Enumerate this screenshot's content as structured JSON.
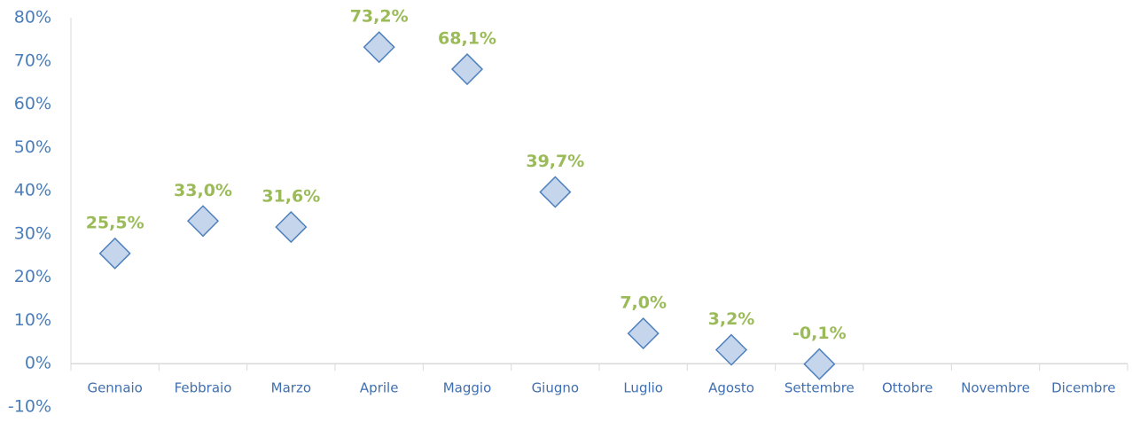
{
  "chart_data": {
    "type": "line",
    "categories": [
      "Gennaio",
      "Febbraio",
      "Marzo",
      "Aprile",
      "Maggio",
      "Giugno",
      "Luglio",
      "Agosto",
      "Settembre",
      "Ottobre",
      "Novembre",
      "Dicembre"
    ],
    "series": [
      {
        "color": "#4f81bd",
        "marker_fill": "#c5d5ec",
        "show_line": false,
        "marker": "diamond",
        "values": [
          25.5,
          33.0,
          31.6,
          73.2,
          68.1,
          39.7,
          7.0,
          3.2,
          -0.1,
          null,
          null,
          null
        ],
        "value_labels": [
          "25,5%",
          "33,0%",
          "31,6%",
          "73,2%",
          "68,1%",
          "39,7%",
          "7,0%",
          "3,2%",
          "-0,1%",
          null,
          null,
          null
        ]
      }
    ],
    "ylim": [
      -10,
      80
    ],
    "yticks": [
      {
        "value": -10,
        "label": "-10%"
      },
      {
        "value": 0,
        "label": "0%"
      },
      {
        "value": 10,
        "label": "10%"
      },
      {
        "value": 20,
        "label": "20%"
      },
      {
        "value": 30,
        "label": "30%"
      },
      {
        "value": 40,
        "label": "40%"
      },
      {
        "value": 50,
        "label": "50%"
      },
      {
        "value": 60,
        "label": "60%"
      },
      {
        "value": 70,
        "label": "70%"
      },
      {
        "value": 80,
        "label": "80%"
      }
    ],
    "grid": false
  }
}
